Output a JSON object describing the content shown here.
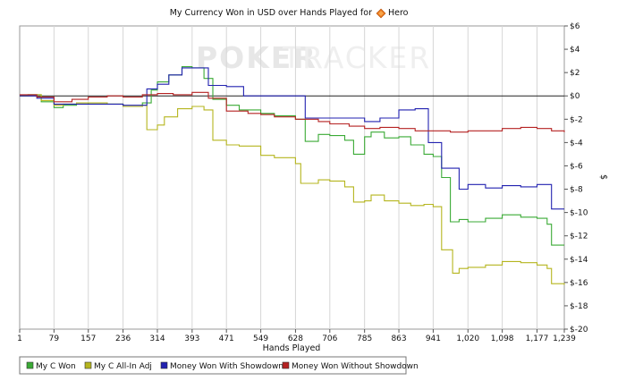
{
  "chart_data": {
    "type": "line",
    "title_prefix": "My Currency Won in USD over Hands Played for",
    "title_player": "Hero",
    "xlabel": "Hands Played",
    "ylabel": "$",
    "watermark": "POKERTRACKER",
    "x_ticks": [
      "1",
      "79",
      "157",
      "236",
      "314",
      "393",
      "471",
      "549",
      "628",
      "706",
      "785",
      "863",
      "941",
      "1,020",
      "1,098",
      "1,177",
      "1,239"
    ],
    "y_ticks": [
      "$6",
      "$4",
      "$2",
      "$0",
      "$-2",
      "$-4",
      "$-6",
      "$-8",
      "$-10",
      "$-12",
      "$-14",
      "$-16",
      "$-18",
      "$-20"
    ],
    "xlim": [
      1,
      1239
    ],
    "ylim": [
      -20,
      6
    ],
    "grid": "vertical",
    "legend_position": "bottom",
    "series": [
      {
        "name": "My C Won",
        "color": "#3aaa35",
        "points": [
          [
            1,
            0
          ],
          [
            20,
            0.1
          ],
          [
            50,
            -0.5
          ],
          [
            79,
            -1.0
          ],
          [
            100,
            -0.8
          ],
          [
            130,
            -0.7
          ],
          [
            157,
            -0.6
          ],
          [
            200,
            -0.7
          ],
          [
            236,
            -0.9
          ],
          [
            280,
            -0.6
          ],
          [
            300,
            0.5
          ],
          [
            314,
            1.2
          ],
          [
            340,
            1.8
          ],
          [
            370,
            2.5
          ],
          [
            393,
            2.4
          ],
          [
            420,
            1.5
          ],
          [
            440,
            -0.3
          ],
          [
            471,
            -0.8
          ],
          [
            500,
            -1.2
          ],
          [
            549,
            -1.5
          ],
          [
            580,
            -1.7
          ],
          [
            628,
            -2.0
          ],
          [
            650,
            -3.9
          ],
          [
            680,
            -3.3
          ],
          [
            706,
            -3.4
          ],
          [
            740,
            -3.8
          ],
          [
            760,
            -5.0
          ],
          [
            785,
            -3.5
          ],
          [
            800,
            -3.1
          ],
          [
            830,
            -3.6
          ],
          [
            863,
            -3.5
          ],
          [
            890,
            -4.2
          ],
          [
            920,
            -5.0
          ],
          [
            941,
            -5.2
          ],
          [
            960,
            -7.0
          ],
          [
            980,
            -10.8
          ],
          [
            1000,
            -10.6
          ],
          [
            1020,
            -10.8
          ],
          [
            1060,
            -10.5
          ],
          [
            1098,
            -10.2
          ],
          [
            1140,
            -10.4
          ],
          [
            1177,
            -10.5
          ],
          [
            1200,
            -11.0
          ],
          [
            1210,
            -12.8
          ],
          [
            1239,
            -12.8
          ]
        ]
      },
      {
        "name": "My C All-In Adj",
        "color": "#b5b51e",
        "points": [
          [
            1,
            0
          ],
          [
            20,
            0.1
          ],
          [
            50,
            -0.4
          ],
          [
            79,
            -0.8
          ],
          [
            100,
            -0.7
          ],
          [
            130,
            -0.6
          ],
          [
            157,
            -0.6
          ],
          [
            200,
            -0.7
          ],
          [
            236,
            -0.9
          ],
          [
            280,
            -0.8
          ],
          [
            290,
            -2.9
          ],
          [
            314,
            -2.5
          ],
          [
            330,
            -1.8
          ],
          [
            360,
            -1.1
          ],
          [
            393,
            -0.9
          ],
          [
            420,
            -1.2
          ],
          [
            440,
            -3.8
          ],
          [
            471,
            -4.2
          ],
          [
            500,
            -4.3
          ],
          [
            549,
            -5.1
          ],
          [
            580,
            -5.3
          ],
          [
            628,
            -5.8
          ],
          [
            640,
            -7.5
          ],
          [
            680,
            -7.2
          ],
          [
            706,
            -7.3
          ],
          [
            740,
            -7.8
          ],
          [
            760,
            -9.1
          ],
          [
            785,
            -9.0
          ],
          [
            800,
            -8.5
          ],
          [
            830,
            -9.0
          ],
          [
            863,
            -9.2
          ],
          [
            890,
            -9.4
          ],
          [
            920,
            -9.3
          ],
          [
            941,
            -9.5
          ],
          [
            960,
            -13.2
          ],
          [
            985,
            -15.2
          ],
          [
            1000,
            -14.8
          ],
          [
            1020,
            -14.7
          ],
          [
            1060,
            -14.5
          ],
          [
            1098,
            -14.2
          ],
          [
            1140,
            -14.3
          ],
          [
            1177,
            -14.5
          ],
          [
            1200,
            -14.8
          ],
          [
            1210,
            -16.1
          ],
          [
            1239,
            -16.2
          ]
        ]
      },
      {
        "name": "Money Won With Showdown",
        "color": "#2222b0",
        "points": [
          [
            1,
            0
          ],
          [
            40,
            -0.2
          ],
          [
            79,
            -0.7
          ],
          [
            157,
            -0.7
          ],
          [
            236,
            -0.8
          ],
          [
            290,
            0.6
          ],
          [
            314,
            1.0
          ],
          [
            340,
            1.8
          ],
          [
            370,
            2.4
          ],
          [
            393,
            2.4
          ],
          [
            430,
            0.9
          ],
          [
            471,
            0.8
          ],
          [
            510,
            0
          ],
          [
            628,
            0
          ],
          [
            650,
            -1.9
          ],
          [
            706,
            -1.9
          ],
          [
            750,
            -1.9
          ],
          [
            785,
            -2.2
          ],
          [
            820,
            -1.9
          ],
          [
            863,
            -1.2
          ],
          [
            900,
            -1.1
          ],
          [
            930,
            -4.0
          ],
          [
            960,
            -6.2
          ],
          [
            1000,
            -8.0
          ],
          [
            1020,
            -7.6
          ],
          [
            1060,
            -7.9
          ],
          [
            1098,
            -7.7
          ],
          [
            1140,
            -7.8
          ],
          [
            1177,
            -7.6
          ],
          [
            1200,
            -7.6
          ],
          [
            1210,
            -9.7
          ],
          [
            1239,
            -9.7
          ]
        ]
      },
      {
        "name": "Money Won Without Showdown",
        "color": "#b52222",
        "points": [
          [
            1,
            0.1
          ],
          [
            40,
            -0.1
          ],
          [
            79,
            -0.5
          ],
          [
            120,
            -0.3
          ],
          [
            157,
            -0.1
          ],
          [
            200,
            0
          ],
          [
            236,
            -0.1
          ],
          [
            280,
            0.1
          ],
          [
            314,
            0.2
          ],
          [
            350,
            0.1
          ],
          [
            393,
            0.3
          ],
          [
            430,
            -0.2
          ],
          [
            471,
            -1.3
          ],
          [
            520,
            -1.5
          ],
          [
            549,
            -1.6
          ],
          [
            580,
            -1.8
          ],
          [
            628,
            -2.0
          ],
          [
            680,
            -2.2
          ],
          [
            706,
            -2.4
          ],
          [
            750,
            -2.6
          ],
          [
            785,
            -2.8
          ],
          [
            820,
            -2.7
          ],
          [
            863,
            -2.8
          ],
          [
            900,
            -3.0
          ],
          [
            941,
            -3.0
          ],
          [
            980,
            -3.1
          ],
          [
            1020,
            -3.0
          ],
          [
            1060,
            -3.0
          ],
          [
            1098,
            -2.8
          ],
          [
            1140,
            -2.7
          ],
          [
            1177,
            -2.8
          ],
          [
            1210,
            -3.0
          ],
          [
            1239,
            -3.1
          ]
        ]
      }
    ]
  }
}
